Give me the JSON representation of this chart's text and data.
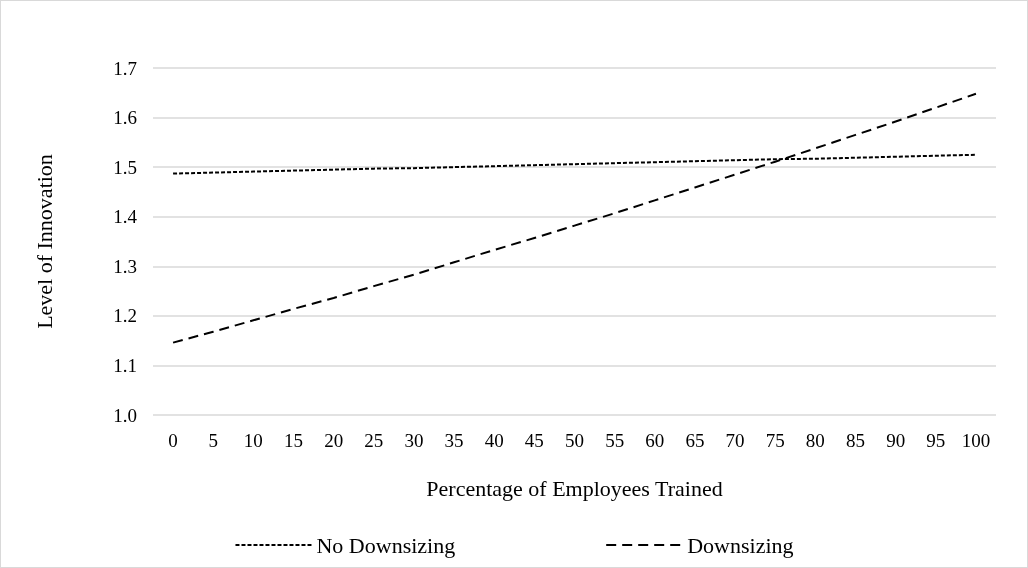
{
  "chart_data": {
    "type": "line",
    "xlabel": "Percentage of Employees Trained",
    "ylabel": "Level of Innovation",
    "categories": [
      "0",
      "5",
      "10",
      "15",
      "20",
      "25",
      "30",
      "35",
      "40",
      "45",
      "50",
      "55",
      "60",
      "65",
      "70",
      "75",
      "80",
      "85",
      "90",
      "95",
      "100"
    ],
    "series": [
      {
        "name": "No Downsizing",
        "color": "#000000",
        "line_style": "dotted",
        "values": [
          1.487,
          1.489,
          1.491,
          1.493,
          1.495,
          1.497,
          1.498,
          1.5,
          1.502,
          1.504,
          1.506,
          1.508,
          1.51,
          1.512,
          1.514,
          1.516,
          1.517,
          1.519,
          1.521,
          1.523,
          1.525
        ]
      },
      {
        "name": "Downsizing",
        "color": "#000000",
        "line_style": "dashed",
        "values": [
          1.146,
          1.168,
          1.191,
          1.214,
          1.236,
          1.26,
          1.283,
          1.308,
          1.333,
          1.357,
          1.382,
          1.407,
          1.433,
          1.459,
          1.485,
          1.511,
          1.538,
          1.565,
          1.592,
          1.62,
          1.648
        ]
      }
    ],
    "ylim": [
      1.0,
      1.7
    ],
    "yticks": [
      {
        "value": 1,
        "label": "1.0"
      },
      1.1,
      1.2,
      1.3,
      1.4,
      1.5,
      1.6,
      1.7
    ],
    "grid": "y",
    "legend": "bottom",
    "marker": "none"
  }
}
